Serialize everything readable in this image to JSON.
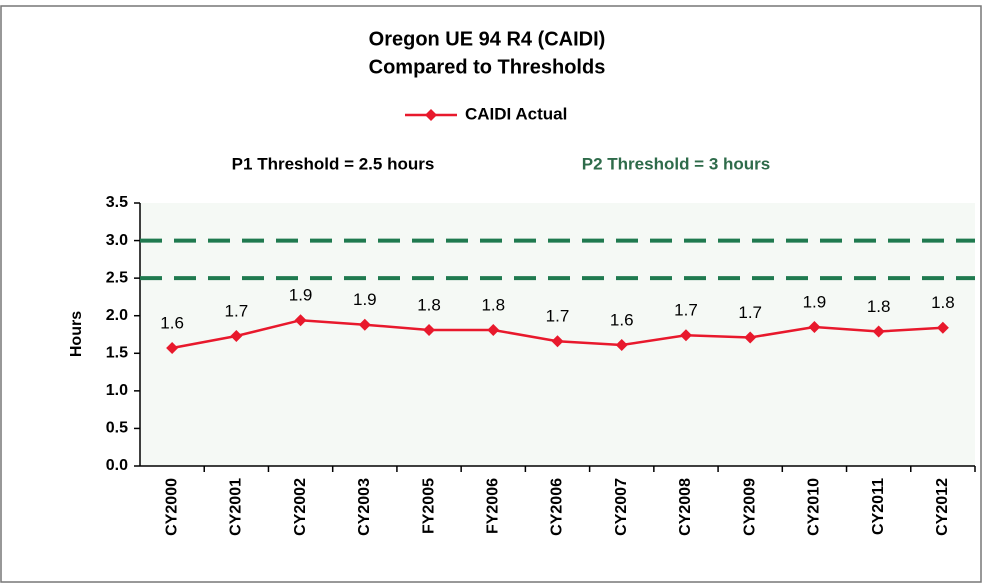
{
  "chart_data": {
    "type": "line",
    "title": [
      "Oregon UE 94 R4 (CAIDI)",
      "Compared to Thresholds"
    ],
    "ylabel": "Hours",
    "annotations": [
      "P1 Threshold = 2.5 hours",
      "P2 Threshold = 3 hours"
    ],
    "categories": [
      "CY2000",
      "CY2001",
      "CY2002",
      "CY2003",
      "FY2005",
      "FY2006",
      "CY2006",
      "CY2007",
      "CY2008",
      "CY2009",
      "CY2010",
      "CY2011",
      "CY2012"
    ],
    "series": [
      {
        "name": "CAIDI Actual",
        "color": "#e8192c",
        "values": [
          1.57,
          1.73,
          1.94,
          1.88,
          1.81,
          1.81,
          1.66,
          1.61,
          1.74,
          1.71,
          1.85,
          1.79,
          1.84
        ],
        "value_labels": [
          "1.6",
          "1.7",
          "1.9",
          "1.9",
          "1.8",
          "1.8",
          "1.7",
          "1.6",
          "1.7",
          "1.7",
          "1.9",
          "1.8",
          "1.8"
        ]
      }
    ],
    "reference_lines": [
      2.5,
      3
    ],
    "reference_color": "#1f7a4f",
    "ylim": [
      0,
      3.5
    ],
    "yticks": [
      {
        "value": 0,
        "label": "0.0"
      },
      0.5,
      {
        "value": 1,
        "label": "1.0"
      },
      1.5,
      {
        "value": 2,
        "label": "2.0"
      },
      2.5,
      {
        "value": 3,
        "label": "3.0"
      },
      3.5
    ]
  }
}
